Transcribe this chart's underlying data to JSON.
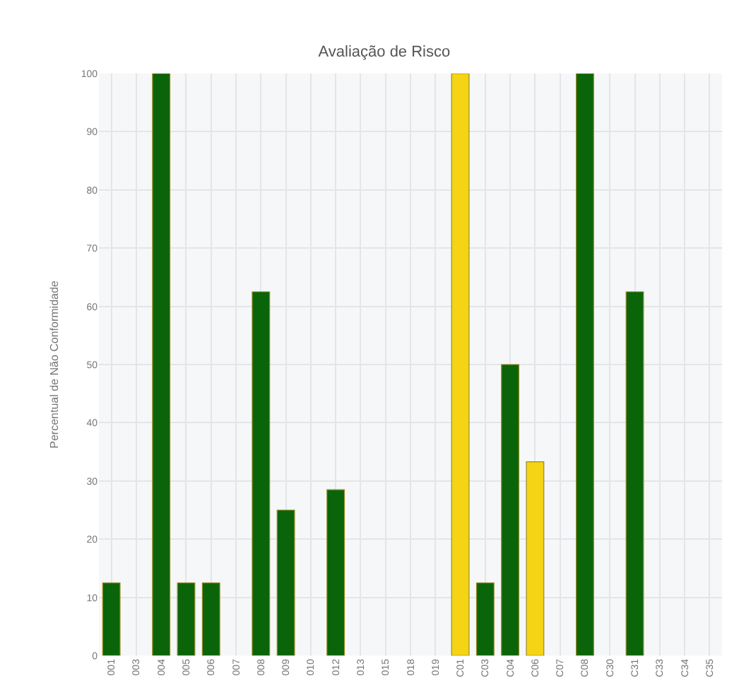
{
  "chart_data": {
    "type": "bar",
    "title": "Avaliação de Risco",
    "ylabel": "Percentual de Não Conformidade",
    "categories": [
      "001",
      "003",
      "004",
      "005",
      "006",
      "007",
      "008",
      "009",
      "010",
      "012",
      "013",
      "015",
      "018",
      "019",
      "C01",
      "C03",
      "C04",
      "C06",
      "C07",
      "C08",
      "C30",
      "C31",
      "C33",
      "C34",
      "C35"
    ],
    "values": [
      12.5,
      null,
      100,
      12.5,
      12.5,
      null,
      62.5,
      25,
      null,
      28.5,
      null,
      null,
      null,
      null,
      100,
      12.5,
      50,
      33.3,
      null,
      100,
      null,
      62.5,
      null,
      null,
      null
    ],
    "colors": [
      "#0a640a",
      "#0a640a",
      "#0a640a",
      "#0a640a",
      "#0a640a",
      "#0a640a",
      "#0a640a",
      "#0a640a",
      "#0a640a",
      "#0a640a",
      "#0a640a",
      "#0a640a",
      "#0a640a",
      "#0a640a",
      "#f5d416",
      "#0a640a",
      "#0a640a",
      "#f5d416",
      "#0a640a",
      "#0a640a",
      "#0a640a",
      "#0a640a",
      "#0a640a",
      "#0a640a",
      "#0a640a"
    ],
    "ylim": [
      0,
      100
    ],
    "yticks": [
      0,
      10,
      20,
      30,
      40,
      50,
      60,
      70,
      80,
      90,
      100
    ],
    "grid": true
  }
}
